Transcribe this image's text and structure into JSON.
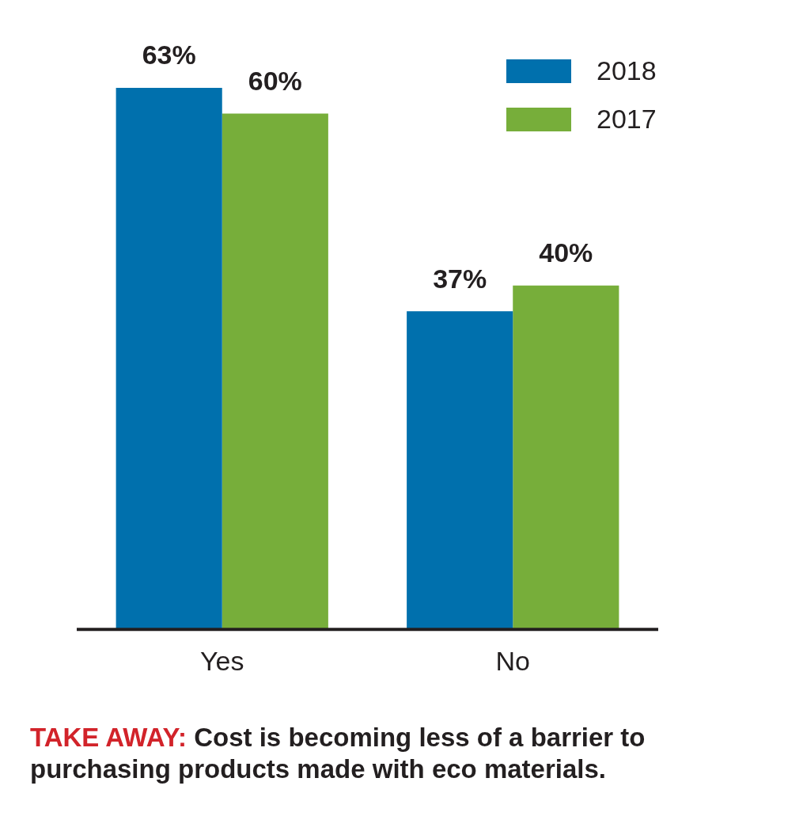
{
  "chart_data": {
    "type": "bar",
    "categories": [
      "Yes",
      "No"
    ],
    "series": [
      {
        "name": "2018",
        "color": "#0070ad",
        "values": [
          63,
          37
        ],
        "value_labels": [
          "63%",
          "37%"
        ]
      },
      {
        "name": "2017",
        "color": "#77ae3a",
        "values": [
          60,
          40
        ],
        "value_labels": [
          "60%",
          "40%"
        ]
      }
    ],
    "tick_labels": "x",
    "legend": "top right",
    "grid": false,
    "annotations": [
      "TAKE AWAY:",
      "Cost is becoming less of a barrier to purchasing products made with eco materials."
    ]
  }
}
